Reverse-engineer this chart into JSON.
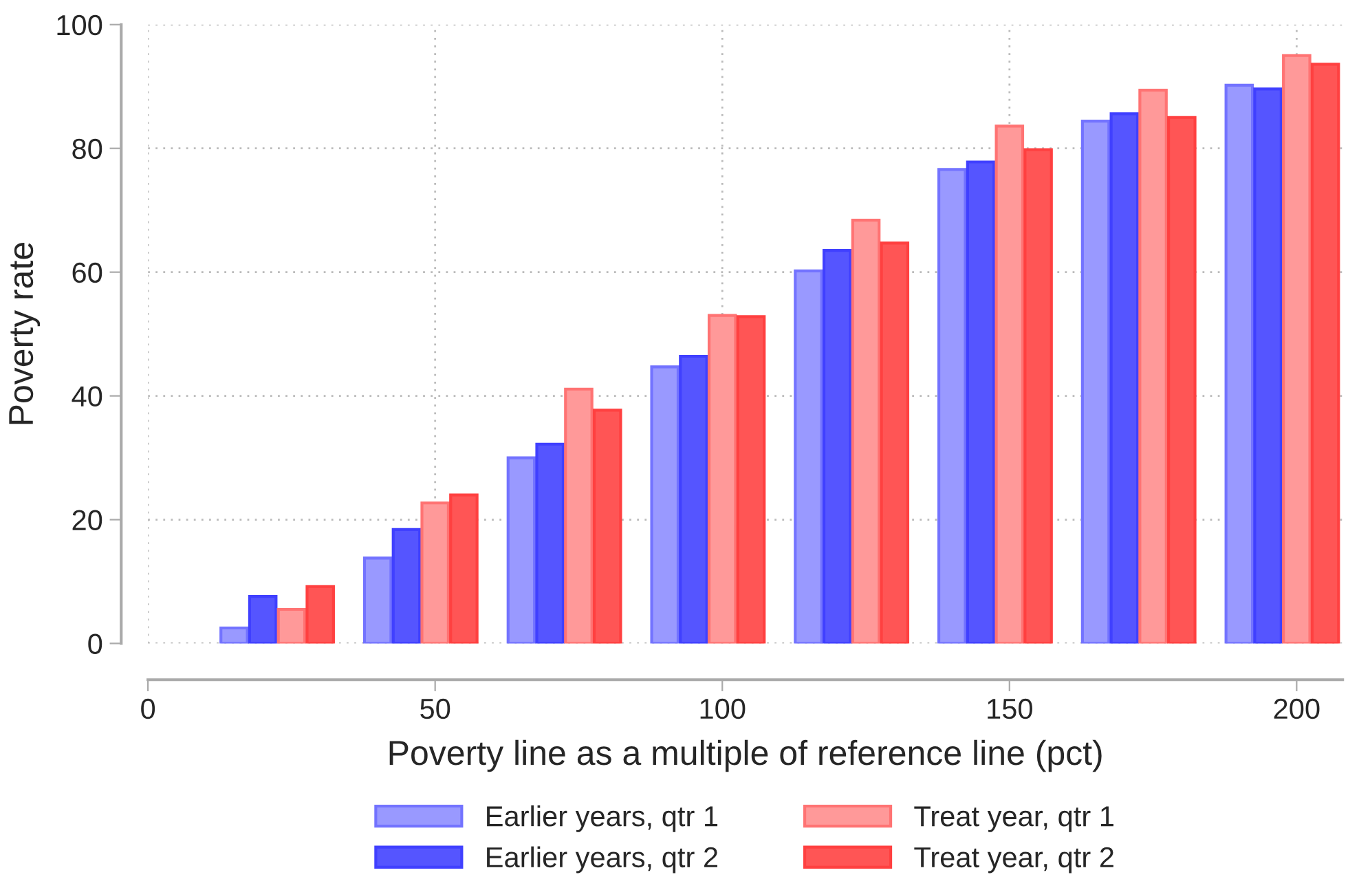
{
  "chart_data": {
    "type": "bar",
    "xlabel": "Poverty line as a multiple of reference line (pct)",
    "ylabel": "Poverty rate",
    "xlim": [
      0,
      208
    ],
    "xticks": [
      0,
      50,
      100,
      150,
      200
    ],
    "ylim": [
      0,
      100
    ],
    "yticks": [
      0,
      20,
      40,
      60,
      80,
      100
    ],
    "grid": true,
    "legend": "bottom",
    "series": [
      {
        "name": "Earlier years, qtr 1",
        "color": "#9999ff",
        "x": [
          15,
          40,
          65,
          90,
          115,
          140,
          165,
          190
        ],
        "values": [
          2.5,
          13.8,
          30.0,
          44.7,
          60.2,
          76.6,
          84.4,
          90.2
        ]
      },
      {
        "name": "Earlier years, qtr 2",
        "color": "#5555ff",
        "x": [
          20,
          45,
          70,
          95,
          120,
          145,
          170,
          195
        ],
        "values": [
          7.6,
          18.4,
          32.2,
          46.4,
          63.5,
          77.8,
          85.6,
          89.6
        ]
      },
      {
        "name": "Treat year, qtr 1",
        "color": "#ff9999",
        "x": [
          25,
          50,
          75,
          100,
          125,
          150,
          175,
          200
        ],
        "values": [
          5.5,
          22.7,
          41.1,
          53.0,
          68.4,
          83.6,
          89.4,
          95.0
        ]
      },
      {
        "name": "Treat year, qtr 2",
        "color": "#ff5555",
        "x": [
          30,
          55,
          80,
          105,
          130,
          155,
          180,
          205
        ],
        "values": [
          9.2,
          24.0,
          37.7,
          52.8,
          64.7,
          79.8,
          85.0,
          93.6
        ]
      }
    ]
  }
}
